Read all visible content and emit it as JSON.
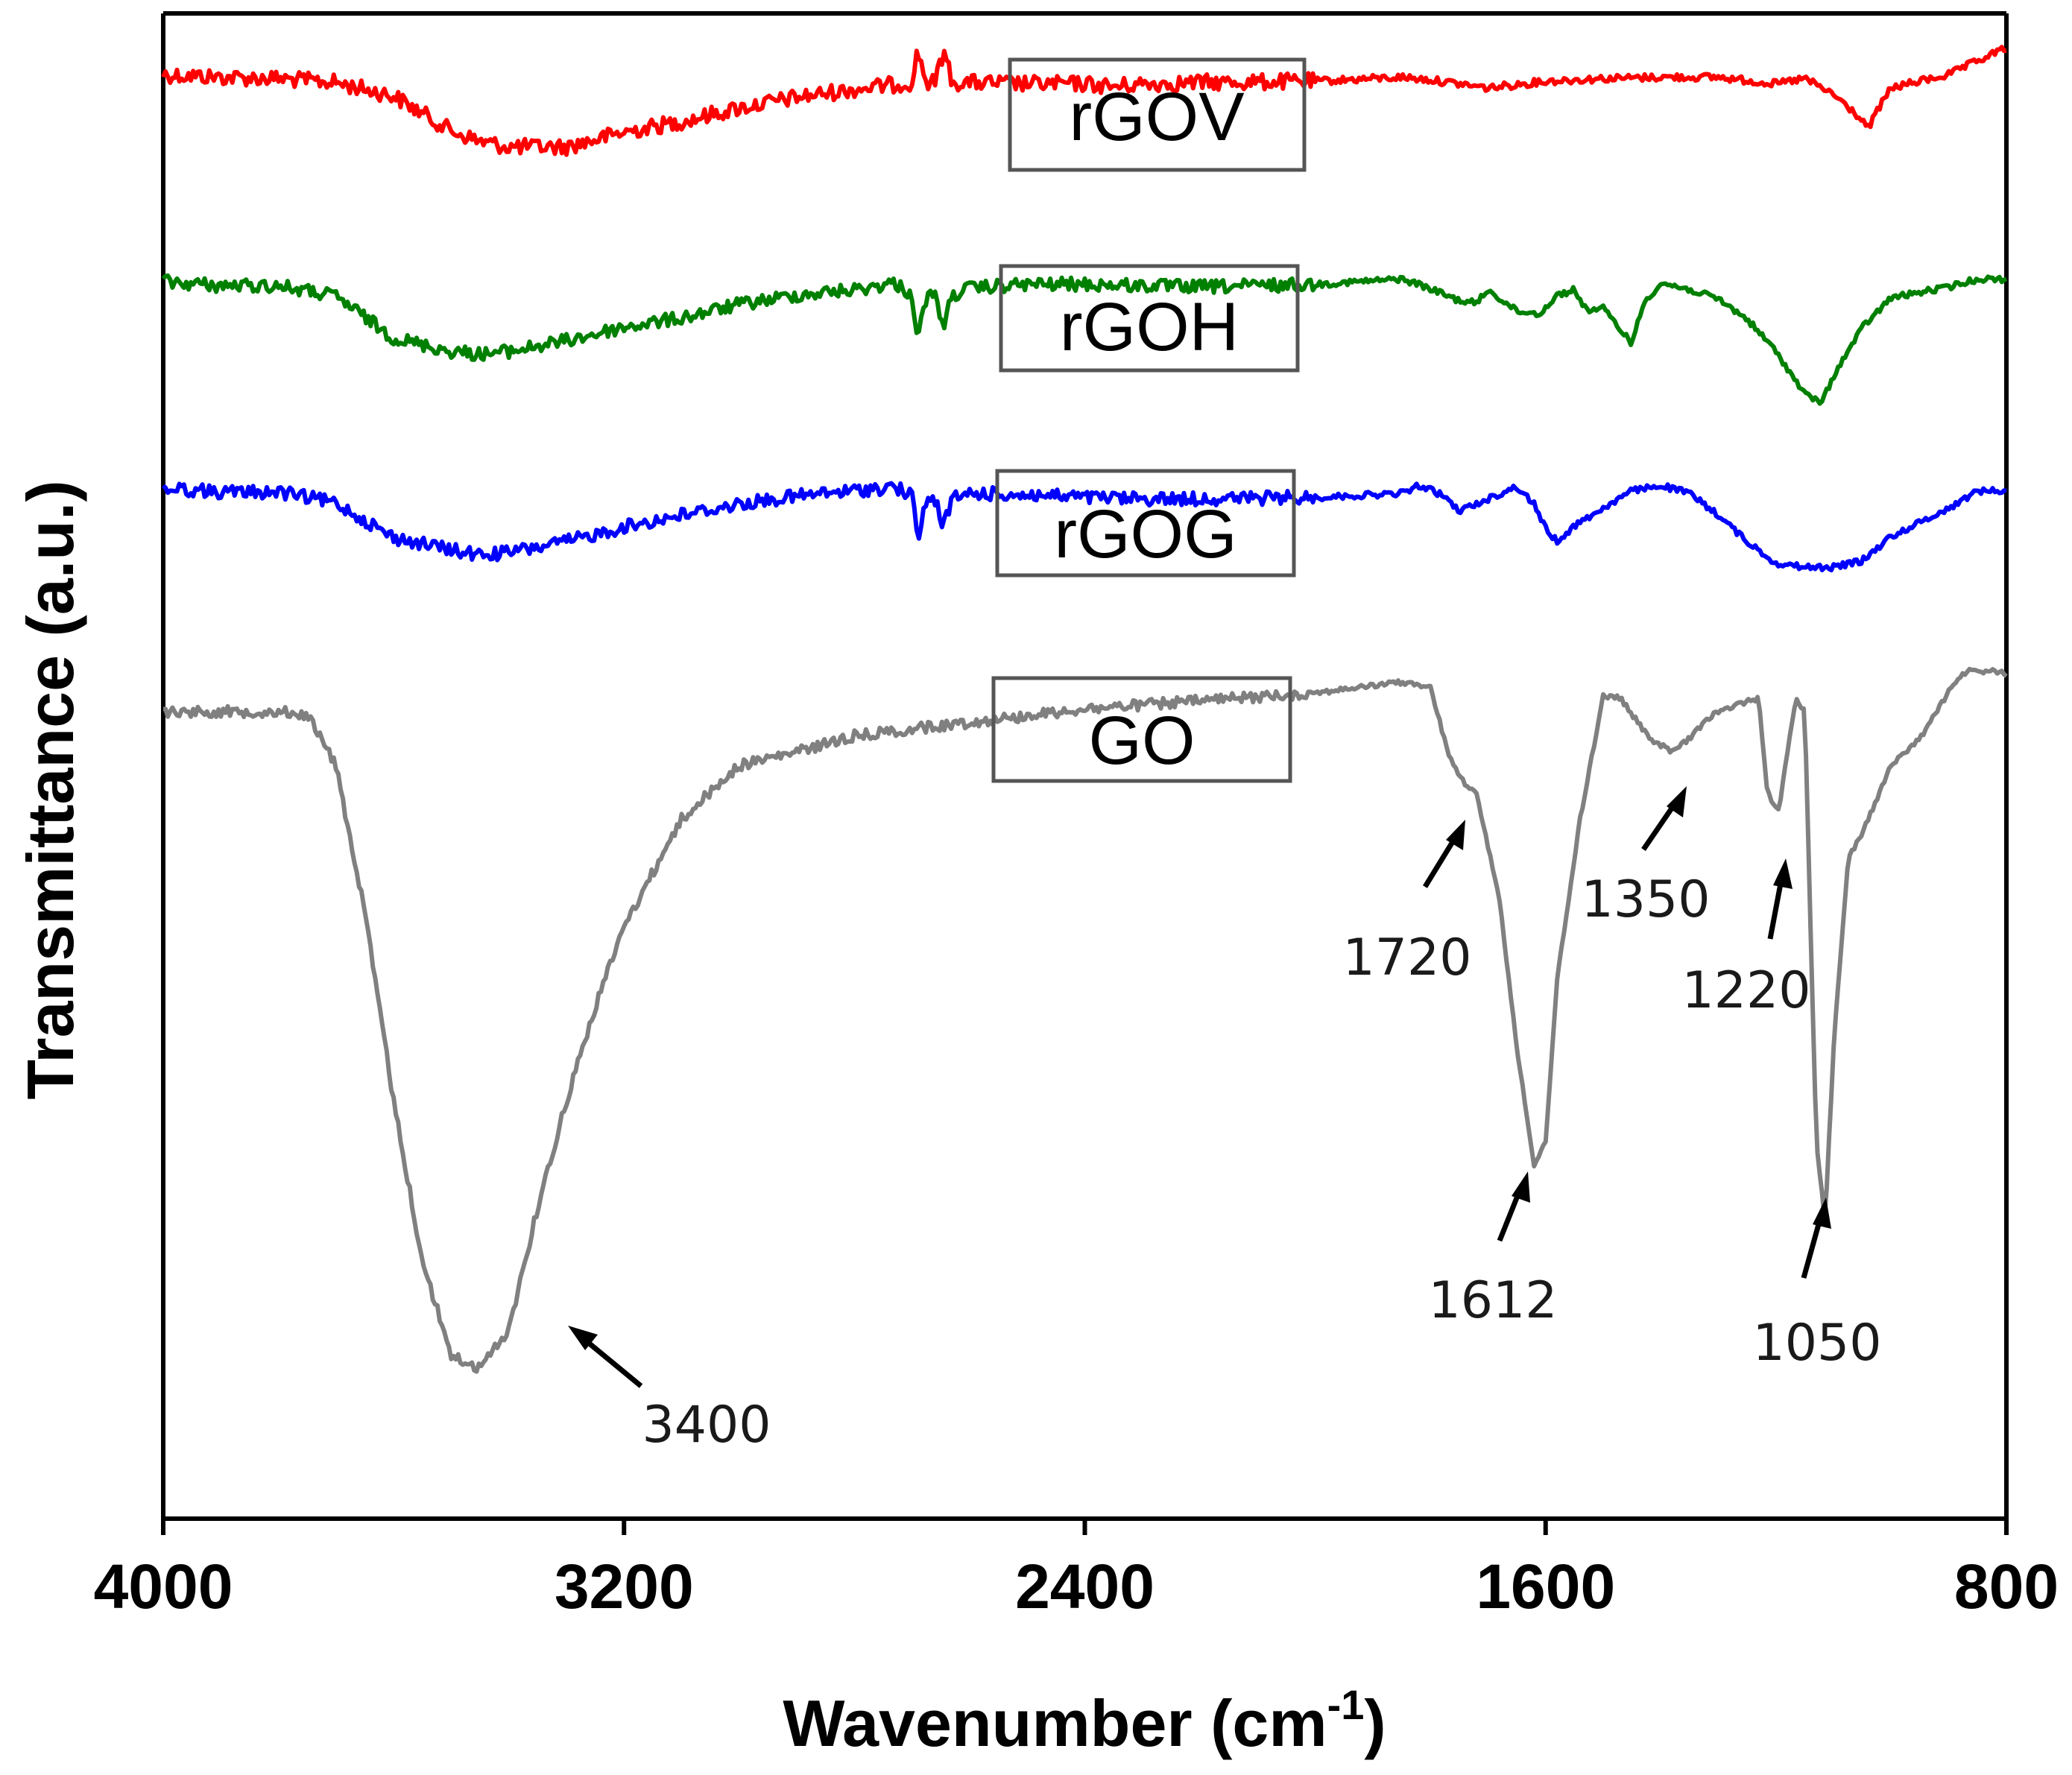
{
  "chart_data": {
    "type": "line",
    "title": "",
    "xlabel": "Wavenumber (cm",
    "xlabel_sup": "-1",
    "xlabel_end": ")",
    "ylabel": "Transmittance (a.u.)",
    "xlim": [
      4000,
      800
    ],
    "x_reversed": true,
    "xticks": [
      4000,
      3200,
      2400,
      1600,
      800
    ],
    "y_units": "arbitrary (stacked, offset)",
    "series": [
      {
        "name": "rGOV",
        "color": "#ff0000",
        "baseline": 0,
        "points": [
          [
            4000,
            0
          ],
          [
            3900,
            2
          ],
          [
            3800,
            3
          ],
          [
            3700,
            6
          ],
          [
            3600,
            16
          ],
          [
            3500,
            42
          ],
          [
            3450,
            50
          ],
          [
            3400,
            54
          ],
          [
            3300,
            54
          ],
          [
            3200,
            43
          ],
          [
            3100,
            35
          ],
          [
            3000,
            25
          ],
          [
            2900,
            17
          ],
          [
            2800,
            11
          ],
          [
            2700,
            6
          ],
          [
            2690,
            -18
          ],
          [
            2675,
            6
          ],
          [
            2660,
            6
          ],
          [
            2645,
            -18
          ],
          [
            2630,
            6
          ],
          [
            2600,
            6
          ],
          [
            2500,
            7
          ],
          [
            2400,
            7
          ],
          [
            2350,
            9
          ],
          [
            2300,
            7
          ],
          [
            2200,
            6
          ],
          [
            2000,
            5
          ],
          [
            1850,
            2
          ],
          [
            1800,
            4
          ],
          [
            1700,
            10
          ],
          [
            1600,
            5
          ],
          [
            1500,
            3
          ],
          [
            1400,
            2
          ],
          [
            1300,
            2
          ],
          [
            1200,
            7
          ],
          [
            1150,
            3
          ],
          [
            1100,
            15
          ],
          [
            1060,
            30
          ],
          [
            1040,
            40
          ],
          [
            1020,
            24
          ],
          [
            1000,
            10
          ],
          [
            900,
            0
          ],
          [
            800,
            -20
          ]
        ],
        "noise": 6
      },
      {
        "name": "rGOH",
        "color": "#008000",
        "baseline": 0,
        "points": [
          [
            4000,
            0
          ],
          [
            3900,
            3
          ],
          [
            3800,
            3
          ],
          [
            3700,
            11
          ],
          [
            3600,
            42
          ],
          [
            3500,
            52
          ],
          [
            3450,
            54
          ],
          [
            3400,
            52
          ],
          [
            3300,
            44
          ],
          [
            3200,
            34
          ],
          [
            3100,
            27
          ],
          [
            3000,
            17
          ],
          [
            2900,
            10
          ],
          [
            2800,
            6
          ],
          [
            2730,
            1
          ],
          [
            2700,
            10
          ],
          [
            2690,
            43
          ],
          [
            2675,
            11
          ],
          [
            2660,
            11
          ],
          [
            2645,
            33
          ],
          [
            2630,
            10
          ],
          [
            2600,
            5
          ],
          [
            2500,
            2
          ],
          [
            2400,
            2
          ],
          [
            2200,
            4
          ],
          [
            2000,
            2
          ],
          [
            1850,
            -2
          ],
          [
            1820,
            2
          ],
          [
            1750,
            14
          ],
          [
            1720,
            16
          ],
          [
            1700,
            6
          ],
          [
            1650,
            22
          ],
          [
            1610,
            24
          ],
          [
            1580,
            10
          ],
          [
            1550,
            6
          ],
          [
            1530,
            21
          ],
          [
            1500,
            20
          ],
          [
            1450,
            46
          ],
          [
            1430,
            16
          ],
          [
            1400,
            1
          ],
          [
            1350,
            6
          ],
          [
            1300,
            13
          ],
          [
            1250,
            28
          ],
          [
            1200,
            52
          ],
          [
            1150,
            84
          ],
          [
            1120,
            90
          ],
          [
            1100,
            70
          ],
          [
            1050,
            34
          ],
          [
            1000,
            12
          ],
          [
            900,
            4
          ],
          [
            850,
            -2
          ],
          [
            800,
            -2
          ]
        ],
        "noise": 5
      },
      {
        "name": "rGOG",
        "color": "#0000ff",
        "baseline": 0,
        "points": [
          [
            4000,
            0
          ],
          [
            3900,
            3
          ],
          [
            3800,
            3
          ],
          [
            3700,
            11
          ],
          [
            3600,
            37
          ],
          [
            3500,
            46
          ],
          [
            3450,
            50
          ],
          [
            3400,
            48
          ],
          [
            3300,
            40
          ],
          [
            3200,
            29
          ],
          [
            3100,
            20
          ],
          [
            3000,
            12
          ],
          [
            2900,
            6
          ],
          [
            2800,
            2
          ],
          [
            2730,
            -1
          ],
          [
            2700,
            6
          ],
          [
            2690,
            38
          ],
          [
            2675,
            9
          ],
          [
            2660,
            9
          ],
          [
            2645,
            28
          ],
          [
            2630,
            8
          ],
          [
            2600,
            4
          ],
          [
            2500,
            5
          ],
          [
            2400,
            7
          ],
          [
            2300,
            8
          ],
          [
            2200,
            8
          ],
          [
            2000,
            7
          ],
          [
            1850,
            4
          ],
          [
            1820,
            -2
          ],
          [
            1780,
            5
          ],
          [
            1750,
            17
          ],
          [
            1720,
            12
          ],
          [
            1700,
            8
          ],
          [
            1650,
            -1
          ],
          [
            1620,
            12
          ],
          [
            1600,
            30
          ],
          [
            1580,
            40
          ],
          [
            1550,
            28
          ],
          [
            1500,
            15
          ],
          [
            1450,
            2
          ],
          [
            1400,
            -2
          ],
          [
            1350,
            4
          ],
          [
            1300,
            20
          ],
          [
            1250,
            40
          ],
          [
            1200,
            56
          ],
          [
            1150,
            59
          ],
          [
            1100,
            59
          ],
          [
            1050,
            54
          ],
          [
            1000,
            36
          ],
          [
            900,
            15
          ],
          [
            850,
            2
          ],
          [
            800,
            2
          ]
        ],
        "noise": 5
      },
      {
        "name": "GO",
        "color": "#808080",
        "baseline": 0,
        "points": [
          [
            4000,
            0
          ],
          [
            3900,
            0
          ],
          [
            3800,
            0
          ],
          [
            3750,
            2
          ],
          [
            3700,
            40
          ],
          [
            3650,
            150
          ],
          [
            3600,
            290
          ],
          [
            3550,
            410
          ],
          [
            3500,
            480
          ],
          [
            3450,
            490
          ],
          [
            3400,
            460
          ],
          [
            3350,
            370
          ],
          [
            3300,
            290
          ],
          [
            3250,
            220
          ],
          [
            3200,
            160
          ],
          [
            3150,
            120
          ],
          [
            3100,
            80
          ],
          [
            3000,
            40
          ],
          [
            2900,
            30
          ],
          [
            2800,
            18
          ],
          [
            2600,
            8
          ],
          [
            2400,
            -2
          ],
          [
            2200,
            -8
          ],
          [
            2000,
            -14
          ],
          [
            1850,
            -22
          ],
          [
            1800,
            -18
          ],
          [
            1770,
            30
          ],
          [
            1740,
            55
          ],
          [
            1720,
            60
          ],
          [
            1680,
            140
          ],
          [
            1650,
            250
          ],
          [
            1620,
            340
          ],
          [
            1600,
            320
          ],
          [
            1580,
            200
          ],
          [
            1540,
            80
          ],
          [
            1500,
            -12
          ],
          [
            1470,
            -10
          ],
          [
            1420,
            20
          ],
          [
            1380,
            30
          ],
          [
            1350,
            20
          ],
          [
            1310,
            2
          ],
          [
            1250,
            -8
          ],
          [
            1230,
            -10
          ],
          [
            1215,
            60
          ],
          [
            1195,
            75
          ],
          [
            1180,
            30
          ],
          [
            1165,
            -10
          ],
          [
            1150,
            0
          ],
          [
            1130,
            320
          ],
          [
            1115,
            380
          ],
          [
            1100,
            250
          ],
          [
            1075,
            110
          ],
          [
            1050,
            90
          ],
          [
            1000,
            40
          ],
          [
            950,
            20
          ],
          [
            900,
            -15
          ],
          [
            870,
            -30
          ],
          [
            820,
            -30
          ],
          [
            800,
            -28
          ]
        ],
        "noise": 4
      }
    ],
    "legend": [
      {
        "label": "rGOV",
        "series": "rGOV"
      },
      {
        "label": "rGOH",
        "series": "rGOH"
      },
      {
        "label": "rGOG",
        "series": "rGOG"
      },
      {
        "label": "GO",
        "series": "GO"
      }
    ],
    "annotations": [
      {
        "text": "3400",
        "x": 3400,
        "series": "GO",
        "arrow_from": "lower-right"
      },
      {
        "text": "1720",
        "x": 1720,
        "series": "GO",
        "arrow_from": "lower-left"
      },
      {
        "text": "1612",
        "x": 1612,
        "series": "GO",
        "arrow_from": "below"
      },
      {
        "text": "1350",
        "x": 1350,
        "series": "GO",
        "arrow_from": "lower-left"
      },
      {
        "text": "1220",
        "x": 1220,
        "series": "GO",
        "arrow_from": "below"
      },
      {
        "text": "1050",
        "x": 1050,
        "series": "GO",
        "arrow_from": "below"
      }
    ]
  }
}
